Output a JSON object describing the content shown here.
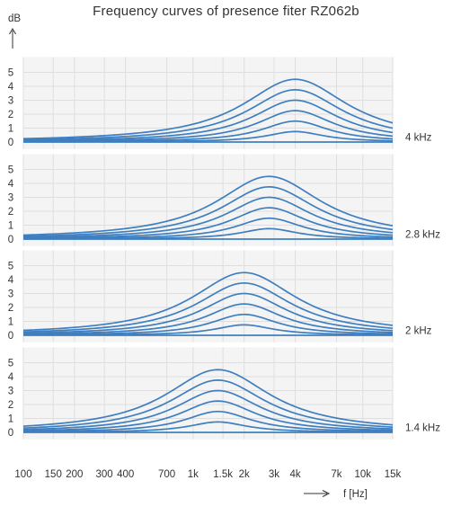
{
  "chart_data": {
    "type": "line",
    "title": "Frequency curves of presence fiter RZ062b",
    "ylabel": "dB",
    "xlabel": "f [Hz]",
    "x_scale": "log",
    "xlim": [
      100,
      15000
    ],
    "ylim": [
      0,
      6
    ],
    "x_ticks": [
      100,
      150,
      200,
      300,
      400,
      700,
      1000,
      1500,
      2000,
      3000,
      4000,
      7000,
      10000,
      15000
    ],
    "x_tick_labels": [
      "100",
      "150",
      "200",
      "300",
      "400",
      "700",
      "1k",
      "1.5k",
      "2k",
      "3k",
      "4k",
      "7k",
      "10k",
      "15k"
    ],
    "y_ticks": [
      0,
      1,
      2,
      3,
      4,
      5
    ],
    "y_tick_labels": [
      "0",
      "1",
      "2",
      "3",
      "4",
      "5"
    ],
    "grid": true,
    "gain_steps_db": [
      0,
      0.75,
      1.5,
      2.25,
      3.0,
      3.75,
      4.5
    ],
    "panels": [
      {
        "center_hz": 4000,
        "label": "4 kHz"
      },
      {
        "center_hz": 2800,
        "label": "2.8 kHz"
      },
      {
        "center_hz": 2000,
        "label": "2 kHz"
      },
      {
        "center_hz": 1400,
        "label": "1.4 kHz"
      }
    ],
    "colors": {
      "curve": "#3f7fc0",
      "grid": "#dedede",
      "panel_bg": "#f4f4f4"
    }
  }
}
